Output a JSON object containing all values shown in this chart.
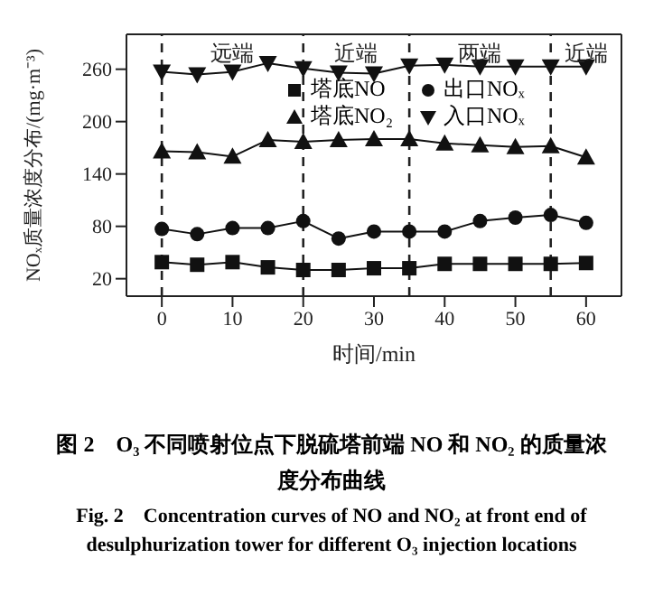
{
  "chart_data": {
    "type": "line",
    "title": "图 2　O₃ 不同喷射位点下脱硫塔前端 NO 和 NO₂ 的质量浓度分布曲线",
    "subtitle": "Fig. 2　Concentration curves of NO and NO₂ at front end of desulphurization tower for different O₃ injection locations",
    "xlabel": "时间/min",
    "ylabel": "NOₓ质量浓度分布/(mg·m⁻³)",
    "x": [
      0,
      5,
      10,
      15,
      20,
      25,
      30,
      35,
      40,
      45,
      50,
      55,
      60
    ],
    "series": [
      {
        "name": "塔底NO",
        "color": "#111111",
        "marker": "square",
        "values": [
          39,
          36,
          39,
          33,
          30,
          30,
          32,
          32,
          37,
          37,
          37,
          37,
          38
        ]
      },
      {
        "name": "塔底NO₂",
        "color": "#111111",
        "marker": "triangle",
        "values": [
          166,
          165,
          160,
          179,
          177,
          179,
          180,
          180,
          175,
          173,
          171,
          172,
          159
        ]
      },
      {
        "name": "出口NOₓ",
        "color": "#111111",
        "marker": "circle",
        "values": [
          77,
          71,
          78,
          78,
          86,
          66,
          74,
          74,
          74,
          86,
          90,
          93,
          84
        ]
      },
      {
        "name": "入口NOₓ",
        "color": "#111111",
        "marker": "triangle-down",
        "values": [
          257,
          254,
          257,
          267,
          261,
          256,
          255,
          264,
          265,
          263,
          263,
          263,
          263
        ]
      }
    ],
    "xlim": [
      -5,
      65
    ],
    "xticks": [
      0,
      10,
      20,
      30,
      40,
      50,
      60
    ],
    "ylim": [
      0,
      300
    ],
    "yticks": [
      20,
      80,
      140,
      200,
      260
    ],
    "ref_lines": [
      {
        "axis": "x",
        "value": 0,
        "line_style": "dashed"
      },
      {
        "axis": "x",
        "value": 20,
        "line_style": "dashed"
      },
      {
        "axis": "x",
        "value": 35,
        "line_style": "dashed"
      },
      {
        "axis": "x",
        "value": 55,
        "line_style": "dashed"
      }
    ],
    "annotations": [
      "远端",
      "近端",
      "两端",
      "近端"
    ],
    "legend": "top",
    "line_style": "solid"
  }
}
